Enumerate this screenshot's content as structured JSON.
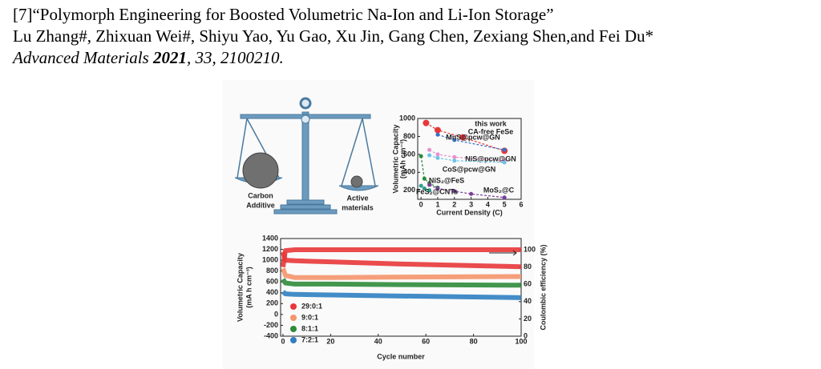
{
  "reference": {
    "title": "[7]“Polymorph Engineering for Boosted Volumetric Na-Ion and Li-Ion Storage”",
    "authors": "Lu Zhang#, Zhixuan Wei#, Shiyu Yao, Yu Gao, Xu Jin, Gang Chen, Zexiang Shen,and Fei Du*",
    "journal": "Advanced Materials ",
    "year": "2021",
    "volume_pages": ", 33, 2100210."
  },
  "figure": {
    "balance": {
      "left_label": [
        "Carbon",
        "Additive"
      ],
      "right_label": [
        "Active",
        "materials"
      ]
    },
    "capacity_chart": {
      "type": "scatter",
      "x_label": "Current Density (C)",
      "y_label": [
        "Volumetric Capacity",
        "(mAh cm⁻³)"
      ],
      "xlim": [
        -0.2,
        6
      ],
      "xticks": [
        0,
        1,
        2,
        3,
        4,
        5,
        6
      ],
      "ylim": [
        100,
        1000
      ],
      "yticks": [
        200,
        400,
        600,
        800,
        1000
      ],
      "series": [
        {
          "name": [
            "this work",
            "CA-free FeSe"
          ],
          "color": "#e8373a",
          "x": [
            0.3,
            1,
            2.5,
            5
          ],
          "values": [
            950,
            870,
            790,
            640
          ]
        },
        {
          "name": [
            "MnS@pcw@GN"
          ],
          "color": "#3a6fc4",
          "x": [
            1,
            2,
            5
          ],
          "values": [
            820,
            760,
            650
          ]
        },
        {
          "name": [
            "NiS@pcw@GN"
          ],
          "color": "#e88fd0",
          "x": [
            0.5,
            1,
            2,
            5
          ],
          "values": [
            650,
            600,
            570,
            530
          ]
        },
        {
          "name": [
            "CoS@pcw@GN"
          ],
          "color": "#6cc3e8",
          "x": [
            0.5,
            1,
            2,
            5
          ],
          "values": [
            590,
            560,
            530,
            510
          ]
        },
        {
          "name": [
            "NiS₂@FeS"
          ],
          "color": "#2a8a3a",
          "x": [
            0,
            0.2,
            0.5,
            1
          ],
          "values": [
            580,
            330,
            280,
            230
          ]
        },
        {
          "name": [
            "MoS₂@C"
          ],
          "color": "#7a3d9a",
          "x": [
            0.5,
            1,
            2,
            3,
            5
          ],
          "values": [
            260,
            220,
            190,
            160,
            120
          ]
        },
        {
          "name": [
            "FeS₂@CNTs"
          ],
          "color": "#2a9d8f",
          "x": [
            0,
            0.2,
            0.5
          ],
          "values": [
            250,
            220,
            200
          ]
        }
      ]
    },
    "cycling_chart": {
      "type": "line",
      "x_label": "Cycle number",
      "y_label": [
        "Volumetric Capacity",
        "(mA h cm⁻³)"
      ],
      "y2_label": "Coulombic efficiency (%)",
      "xlim": [
        -1,
        100
      ],
      "xticks": [
        0,
        20,
        40,
        60,
        80,
        100
      ],
      "ylim": [
        -400,
        1400
      ],
      "yticks": [
        -400,
        -200,
        0,
        200,
        400,
        600,
        800,
        1000,
        1200,
        1400
      ],
      "y2lim": [
        0,
        113
      ],
      "y2ticks": [
        0,
        20,
        40,
        60,
        80,
        100
      ],
      "x": [
        0,
        1,
        5,
        20,
        50,
        100
      ],
      "series": [
        {
          "name": "29:0:1",
          "color": "#e8373a",
          "values": [
            1150,
            1000,
            990,
            970,
            930,
            880
          ]
        },
        {
          "name": "9:0:1",
          "color": "#f4956b",
          "values": [
            850,
            720,
            680,
            680,
            690,
            700
          ]
        },
        {
          "name": "8:1:1",
          "color": "#2e8b3a",
          "values": [
            650,
            580,
            560,
            560,
            550,
            540
          ]
        },
        {
          "name": "7:2:1",
          "color": "#2f7fc1",
          "values": [
            420,
            380,
            370,
            360,
            340,
            310
          ]
        },
        {
          "name": "Coulombic efficiency",
          "color": "#e8373a",
          "axis": "y2",
          "values": [
            80,
            99,
            100,
            100,
            100,
            100
          ]
        }
      ]
    }
  }
}
